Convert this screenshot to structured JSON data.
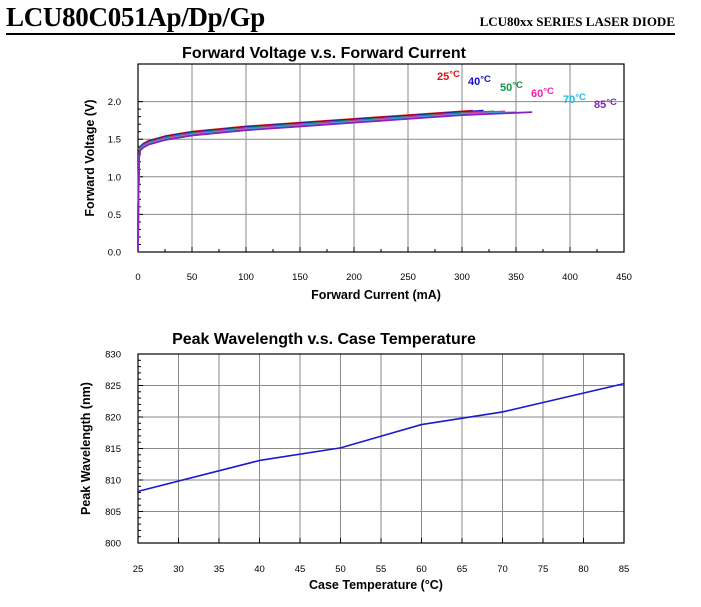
{
  "header": {
    "part_number": "LCU80C051Ap/Dp/Gp",
    "series_label": "LCU80xx SERIES LASER DIODE"
  },
  "chart_data": [
    {
      "type": "line",
      "title": "Forward Voltage v.s. Forward Current",
      "xlabel": "Forward Current (mA)",
      "ylabel": "Forward Voltage (V)",
      "xlim": [
        0,
        450
      ],
      "ylim": [
        0,
        2.5
      ],
      "xticks": [
        0,
        50,
        100,
        150,
        200,
        250,
        300,
        350,
        400,
        450
      ],
      "yticks": [
        0.0,
        0.5,
        1.0,
        1.5,
        2.0
      ],
      "ytick_labels": [
        "0.0",
        "0.5",
        "1.0",
        "1.5",
        "2.0"
      ],
      "grid": true,
      "series": [
        {
          "name": "25°C",
          "label_text": "25",
          "unit_text": "°C",
          "color": "#dd1111",
          "x": [
            0,
            0.3,
            1,
            2,
            5,
            10,
            25,
            50,
            100,
            150,
            200,
            250,
            300,
            310
          ],
          "y": [
            0,
            0.6,
            1.3,
            1.4,
            1.44,
            1.48,
            1.54,
            1.6,
            1.67,
            1.72,
            1.77,
            1.82,
            1.87,
            1.88
          ]
        },
        {
          "name": "40°C",
          "label_text": "40",
          "unit_text": "°C",
          "color": "#1111cc",
          "x": [
            0,
            0.3,
            1,
            2,
            5,
            10,
            25,
            50,
            100,
            150,
            200,
            250,
            300,
            320
          ],
          "y": [
            0,
            0.6,
            1.29,
            1.39,
            1.43,
            1.47,
            1.53,
            1.59,
            1.66,
            1.71,
            1.76,
            1.81,
            1.86,
            1.88
          ]
        },
        {
          "name": "50°C",
          "label_text": "50",
          "unit_text": "°C",
          "color": "#119944",
          "x": [
            0,
            0.3,
            1,
            2,
            5,
            10,
            25,
            50,
            100,
            150,
            200,
            250,
            300,
            330
          ],
          "y": [
            0,
            0.6,
            1.28,
            1.38,
            1.42,
            1.46,
            1.52,
            1.58,
            1.65,
            1.7,
            1.75,
            1.8,
            1.85,
            1.87
          ]
        },
        {
          "name": "60°C",
          "label_text": "60",
          "unit_text": "°C",
          "color": "#ee22aa",
          "x": [
            0,
            0.3,
            1,
            2,
            5,
            10,
            25,
            50,
            100,
            150,
            200,
            250,
            300,
            340
          ],
          "y": [
            0,
            0.6,
            1.27,
            1.37,
            1.41,
            1.45,
            1.51,
            1.57,
            1.64,
            1.69,
            1.74,
            1.79,
            1.84,
            1.87
          ]
        },
        {
          "name": "70°C",
          "label_text": "70",
          "unit_text": "°C",
          "color": "#22bbdd",
          "x": [
            0,
            0.3,
            1,
            2,
            5,
            10,
            25,
            50,
            100,
            150,
            200,
            250,
            300,
            350
          ],
          "y": [
            0,
            0.6,
            1.26,
            1.36,
            1.4,
            1.44,
            1.5,
            1.56,
            1.63,
            1.68,
            1.73,
            1.78,
            1.83,
            1.86
          ]
        },
        {
          "name": "85°C",
          "label_text": "85",
          "unit_text": "°C",
          "color": "#8822bb",
          "x": [
            0,
            0.3,
            1,
            2,
            5,
            10,
            25,
            50,
            100,
            150,
            200,
            250,
            300,
            365
          ],
          "y": [
            0,
            0.6,
            1.25,
            1.35,
            1.39,
            1.43,
            1.49,
            1.55,
            1.62,
            1.67,
            1.72,
            1.77,
            1.82,
            1.86
          ]
        }
      ]
    },
    {
      "type": "line",
      "title": "Peak Wavelength v.s. Case Temperature",
      "xlabel": "Case Temperature (°C)",
      "ylabel": "Peak Wavelength (nm)",
      "xlim": [
        25,
        85
      ],
      "ylim": [
        800,
        830
      ],
      "xticks": [
        25,
        30,
        35,
        40,
        45,
        50,
        55,
        60,
        65,
        70,
        75,
        80,
        85
      ],
      "yticks": [
        800,
        805,
        810,
        815,
        820,
        825,
        830
      ],
      "ytick_labels": [
        "800",
        "805",
        "810",
        "815",
        "820",
        "825",
        "830"
      ],
      "grid": true,
      "series": [
        {
          "name": "Peak Wavelength",
          "color": "#1a1acc",
          "x": [
            25,
            40,
            50,
            60,
            70,
            85
          ],
          "y": [
            808.2,
            813.1,
            815.1,
            818.8,
            820.8,
            825.3
          ]
        }
      ]
    }
  ]
}
